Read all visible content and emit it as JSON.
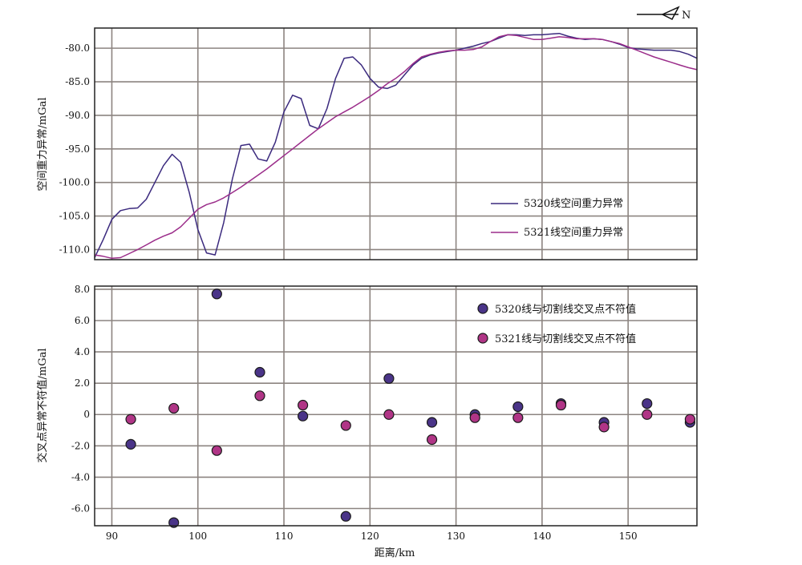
{
  "compass": {
    "label": "N"
  },
  "xlabel": "距离/km",
  "colors": {
    "line_5320": "#3b2a7e",
    "line_5321": "#9b2d8a",
    "dot_5320": "#4a3488",
    "dot_5321": "#b03586",
    "grid": "#8c8480"
  },
  "chart_data": [
    {
      "type": "line",
      "ylabel": "空间重力异常/mGal",
      "xlim": [
        88,
        158
      ],
      "ylim": [
        -111.5,
        -77
      ],
      "x_ticks": [
        90,
        100,
        110,
        120,
        130,
        140,
        150
      ],
      "y_ticks": [
        -80,
        -85,
        -90,
        -95,
        -100,
        -105,
        -110
      ],
      "y_tick_labels": [
        "-80.0",
        "-85.0",
        "-90.0",
        "-95.0",
        "-100.0",
        "-105.0",
        "-110.0"
      ],
      "grid": true,
      "legend_position": "lower-right",
      "series": [
        {
          "name": "5320线空间重力异常",
          "x": [
            88,
            89,
            90,
            91,
            92,
            93,
            94,
            95,
            96,
            97,
            98,
            99,
            100,
            101,
            102,
            103,
            104,
            105,
            106,
            107,
            108,
            109,
            110,
            111,
            112,
            113,
            114,
            115,
            116,
            117,
            118,
            119,
            120,
            121,
            122,
            123,
            124,
            125,
            126,
            127,
            128,
            129,
            130,
            131,
            132,
            133,
            134,
            135,
            136,
            137,
            138,
            139,
            140,
            141,
            142,
            143,
            144,
            145,
            146,
            147,
            148,
            149,
            150,
            151,
            152,
            153,
            154,
            155,
            156,
            157,
            158
          ],
          "y": [
            -111.2,
            -108.5,
            -105.5,
            -104.2,
            -103.9,
            -103.8,
            -102.5,
            -100,
            -97.5,
            -95.8,
            -97,
            -101.5,
            -107,
            -110.5,
            -110.8,
            -106,
            -99.5,
            -94.5,
            -94.3,
            -96.5,
            -96.8,
            -94,
            -89.5,
            -87,
            -87.5,
            -91.5,
            -92,
            -89,
            -84.5,
            -81.5,
            -81.3,
            -82.5,
            -84.5,
            -85.8,
            -86,
            -85.5,
            -84,
            -82.5,
            -81.5,
            -81,
            -80.7,
            -80.5,
            -80.3,
            -80,
            -79.7,
            -79.3,
            -79,
            -78.5,
            -78,
            -78,
            -78.1,
            -78,
            -78,
            -77.9,
            -77.8,
            -78.2,
            -78.5,
            -78.7,
            -78.6,
            -78.7,
            -79,
            -79.4,
            -79.9,
            -80.1,
            -80.2,
            -80.3,
            -80.3,
            -80.3,
            -80.5,
            -80.9,
            -81.5
          ]
        },
        {
          "name": "5321线空间重力异常",
          "x": [
            88,
            89,
            90,
            91,
            92,
            93,
            94,
            95,
            96,
            97,
            98,
            99,
            100,
            101,
            102,
            103,
            104,
            105,
            106,
            107,
            108,
            109,
            110,
            111,
            112,
            113,
            114,
            115,
            116,
            117,
            118,
            119,
            120,
            121,
            122,
            123,
            124,
            125,
            126,
            127,
            128,
            129,
            130,
            131,
            132,
            133,
            134,
            135,
            136,
            137,
            138,
            139,
            140,
            141,
            142,
            143,
            144,
            145,
            146,
            147,
            148,
            149,
            150,
            151,
            152,
            153,
            154,
            155,
            156,
            157,
            158
          ],
          "y": [
            -110.8,
            -111,
            -111.3,
            -111.2,
            -110.6,
            -110,
            -109.3,
            -108.6,
            -108,
            -107.5,
            -106.6,
            -105.3,
            -104,
            -103.3,
            -102.9,
            -102.3,
            -101.5,
            -100.7,
            -99.8,
            -98.9,
            -98,
            -97,
            -96,
            -95,
            -94,
            -93,
            -92,
            -91.1,
            -90.2,
            -89.5,
            -88.8,
            -88,
            -87.2,
            -86.3,
            -85.3,
            -84.5,
            -83.5,
            -82.3,
            -81.3,
            -80.9,
            -80.6,
            -80.4,
            -80.3,
            -80.3,
            -80.2,
            -79.8,
            -79,
            -78.3,
            -78,
            -78.1,
            -78.4,
            -78.7,
            -78.7,
            -78.5,
            -78.3,
            -78.4,
            -78.6,
            -78.6,
            -78.6,
            -78.7,
            -79,
            -79.3,
            -79.8,
            -80.3,
            -80.8,
            -81.3,
            -81.7,
            -82.1,
            -82.5,
            -82.9,
            -83.2
          ]
        }
      ]
    },
    {
      "type": "scatter",
      "ylabel": "交叉点异常不符值/mGal",
      "xlim": [
        88,
        158
      ],
      "ylim": [
        -7.1,
        8.2
      ],
      "x_ticks": [
        90,
        100,
        110,
        120,
        130,
        140,
        150
      ],
      "y_ticks": [
        8,
        6,
        4,
        2,
        0,
        -2,
        -4,
        -6
      ],
      "y_tick_labels": [
        "8.0",
        "6.0",
        "4.0",
        "2.0",
        "0",
        "-2.0",
        "-4.0",
        "-6.0"
      ],
      "grid": true,
      "legend_position": "upper-right",
      "series": [
        {
          "name": "5320线与切割线交叉点不符值",
          "x": [
            92.2,
            97.2,
            102.2,
            107.2,
            112.2,
            117.2,
            122.2,
            127.2,
            132.2,
            137.2,
            142.2,
            147.2,
            152.2,
            157.2
          ],
          "y": [
            -1.9,
            -6.9,
            7.7,
            2.7,
            -0.1,
            -6.5,
            2.3,
            -0.5,
            0,
            0.5,
            0.7,
            -0.5,
            0.7,
            -0.5
          ]
        },
        {
          "name": "5321线与切割线交叉点不符值",
          "x": [
            92.2,
            97.2,
            102.2,
            107.2,
            112.2,
            117.2,
            122.2,
            127.2,
            132.2,
            137.2,
            142.2,
            147.2,
            152.2,
            157.2
          ],
          "y": [
            -0.3,
            0.4,
            -2.3,
            1.2,
            0.6,
            -0.7,
            0,
            -1.6,
            -0.2,
            -0.2,
            0.6,
            -0.8,
            0,
            -0.3
          ]
        }
      ]
    }
  ]
}
